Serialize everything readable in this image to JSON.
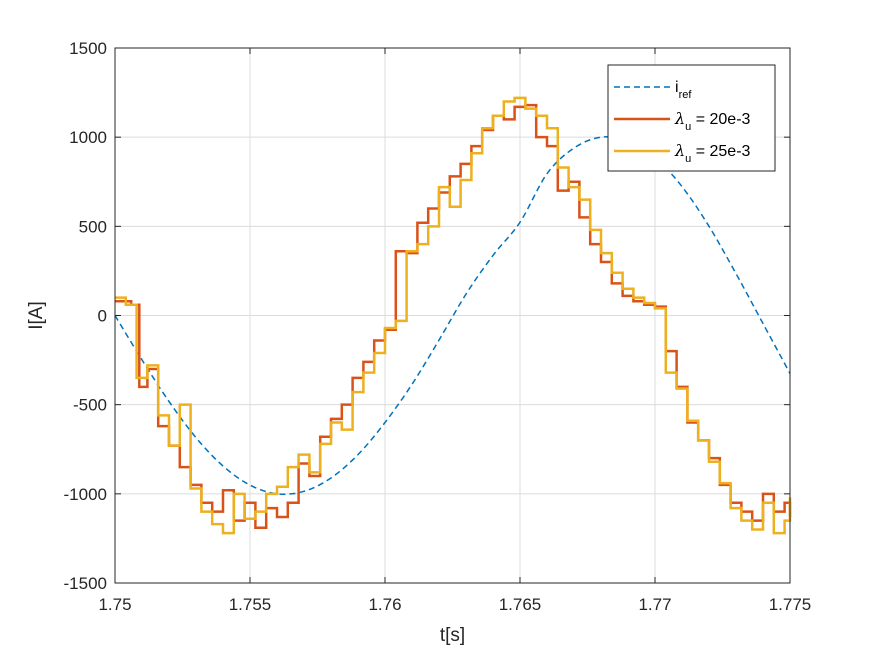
{
  "chart_data": {
    "type": "line",
    "title": "",
    "xlabel": "t[s]",
    "ylabel": "I[A]",
    "xlim": [
      1.75,
      1.775
    ],
    "ylim": [
      -1500,
      1500
    ],
    "xticks": [
      1.75,
      1.755,
      1.76,
      1.765,
      1.77,
      1.775
    ],
    "xtick_labels": [
      "1.75",
      "1.755",
      "1.76",
      "1.765",
      "1.77",
      "1.775"
    ],
    "yticks": [
      -1500,
      -1000,
      -500,
      0,
      500,
      1000,
      1500
    ],
    "ytick_labels": [
      "-1500",
      "-1000",
      "-500",
      "0",
      "500",
      "1000",
      "1500"
    ],
    "grid": true,
    "legend_position": "top-right",
    "series": [
      {
        "name": "i_ref",
        "label_main": "i",
        "label_sub": "ref",
        "style": "dashed",
        "color": "#0072BD",
        "x": [
          1.75,
          1.751,
          1.752,
          1.753,
          1.754,
          1.755,
          1.756,
          1.757,
          1.758,
          1.759,
          1.76,
          1.761,
          1.762,
          1.763,
          1.764,
          1.765,
          1.766,
          1.767,
          1.768,
          1.769,
          1.77,
          1.771,
          1.772,
          1.773,
          1.774,
          1.775
        ],
        "y": [
          0,
          -249,
          -482,
          -685,
          -844,
          -951,
          -1000,
          -986,
          -911,
          -780,
          -600,
          -386,
          -138,
          120,
          337,
          523,
          795,
          939,
          1000,
          981,
          886,
          723,
          500,
          235,
          -45,
          -325
        ]
      },
      {
        "name": "λu = 20e-3",
        "label_main": "= 20e-3",
        "label_sub": "u",
        "style": "solid",
        "color": "#D95319",
        "x": [
          1.75,
          1.7506,
          1.7509,
          1.7512,
          1.7516,
          1.752,
          1.7524,
          1.7528,
          1.7532,
          1.7536,
          1.754,
          1.7544,
          1.7548,
          1.7552,
          1.7556,
          1.756,
          1.7564,
          1.7568,
          1.7572,
          1.7576,
          1.758,
          1.7584,
          1.7588,
          1.7592,
          1.7596,
          1.76,
          1.7604,
          1.7608,
          1.7612,
          1.7616,
          1.762,
          1.7624,
          1.7628,
          1.7632,
          1.7636,
          1.764,
          1.7644,
          1.7648,
          1.7652,
          1.7656,
          1.766,
          1.7664,
          1.7668,
          1.7672,
          1.7676,
          1.768,
          1.7684,
          1.7688,
          1.7692,
          1.7696,
          1.77,
          1.7704,
          1.7708,
          1.7712,
          1.7716,
          1.772,
          1.7724,
          1.7728,
          1.7732,
          1.7736,
          1.774,
          1.7744,
          1.7748,
          1.775
        ],
        "y": [
          80,
          60,
          -400,
          -300,
          -620,
          -730,
          -850,
          -950,
          -1050,
          -1100,
          -980,
          -1150,
          -1050,
          -1190,
          -1080,
          -1130,
          -1050,
          -830,
          -900,
          -680,
          -580,
          -500,
          -350,
          -260,
          -140,
          -80,
          360,
          350,
          520,
          600,
          690,
          780,
          850,
          950,
          1040,
          1120,
          1100,
          1170,
          1180,
          1000,
          950,
          700,
          750,
          550,
          400,
          300,
          180,
          110,
          80,
          60,
          50,
          -200,
          -400,
          -600,
          -700,
          -800,
          -950,
          -1050,
          -1100,
          -1150,
          -1000,
          -1100,
          -1050,
          -1130
        ]
      },
      {
        "name": "λu = 25e-3",
        "label_main": "= 25e-3",
        "label_sub": "u",
        "style": "solid",
        "color": "#EDB120",
        "x": [
          1.75,
          1.7504,
          1.7508,
          1.7512,
          1.7516,
          1.752,
          1.7524,
          1.7528,
          1.7532,
          1.7536,
          1.754,
          1.7544,
          1.7548,
          1.7552,
          1.7556,
          1.756,
          1.7564,
          1.7568,
          1.7572,
          1.7576,
          1.758,
          1.7584,
          1.7588,
          1.7592,
          1.7596,
          1.76,
          1.7604,
          1.7608,
          1.7612,
          1.7616,
          1.762,
          1.7624,
          1.7628,
          1.7632,
          1.7636,
          1.764,
          1.7644,
          1.7648,
          1.7652,
          1.7656,
          1.766,
          1.7664,
          1.7668,
          1.7672,
          1.7676,
          1.768,
          1.7684,
          1.7688,
          1.7692,
          1.7696,
          1.77,
          1.7704,
          1.7708,
          1.7712,
          1.7716,
          1.772,
          1.7724,
          1.7728,
          1.7732,
          1.7736,
          1.774,
          1.7744,
          1.7748,
          1.775
        ],
        "y": [
          100,
          60,
          -350,
          -280,
          -560,
          -730,
          -500,
          -970,
          -1100,
          -1170,
          -1220,
          -1000,
          -1140,
          -1100,
          -1000,
          -960,
          -850,
          -780,
          -880,
          -720,
          -600,
          -640,
          -430,
          -320,
          -210,
          -70,
          -30,
          360,
          400,
          500,
          720,
          610,
          760,
          910,
          1050,
          1120,
          1200,
          1220,
          1160,
          1120,
          1050,
          830,
          720,
          650,
          480,
          350,
          240,
          150,
          100,
          70,
          40,
          -320,
          -410,
          -590,
          -700,
          -820,
          -940,
          -1080,
          -1150,
          -1200,
          -1050,
          -1220,
          -1150,
          -1020
        ]
      }
    ]
  }
}
